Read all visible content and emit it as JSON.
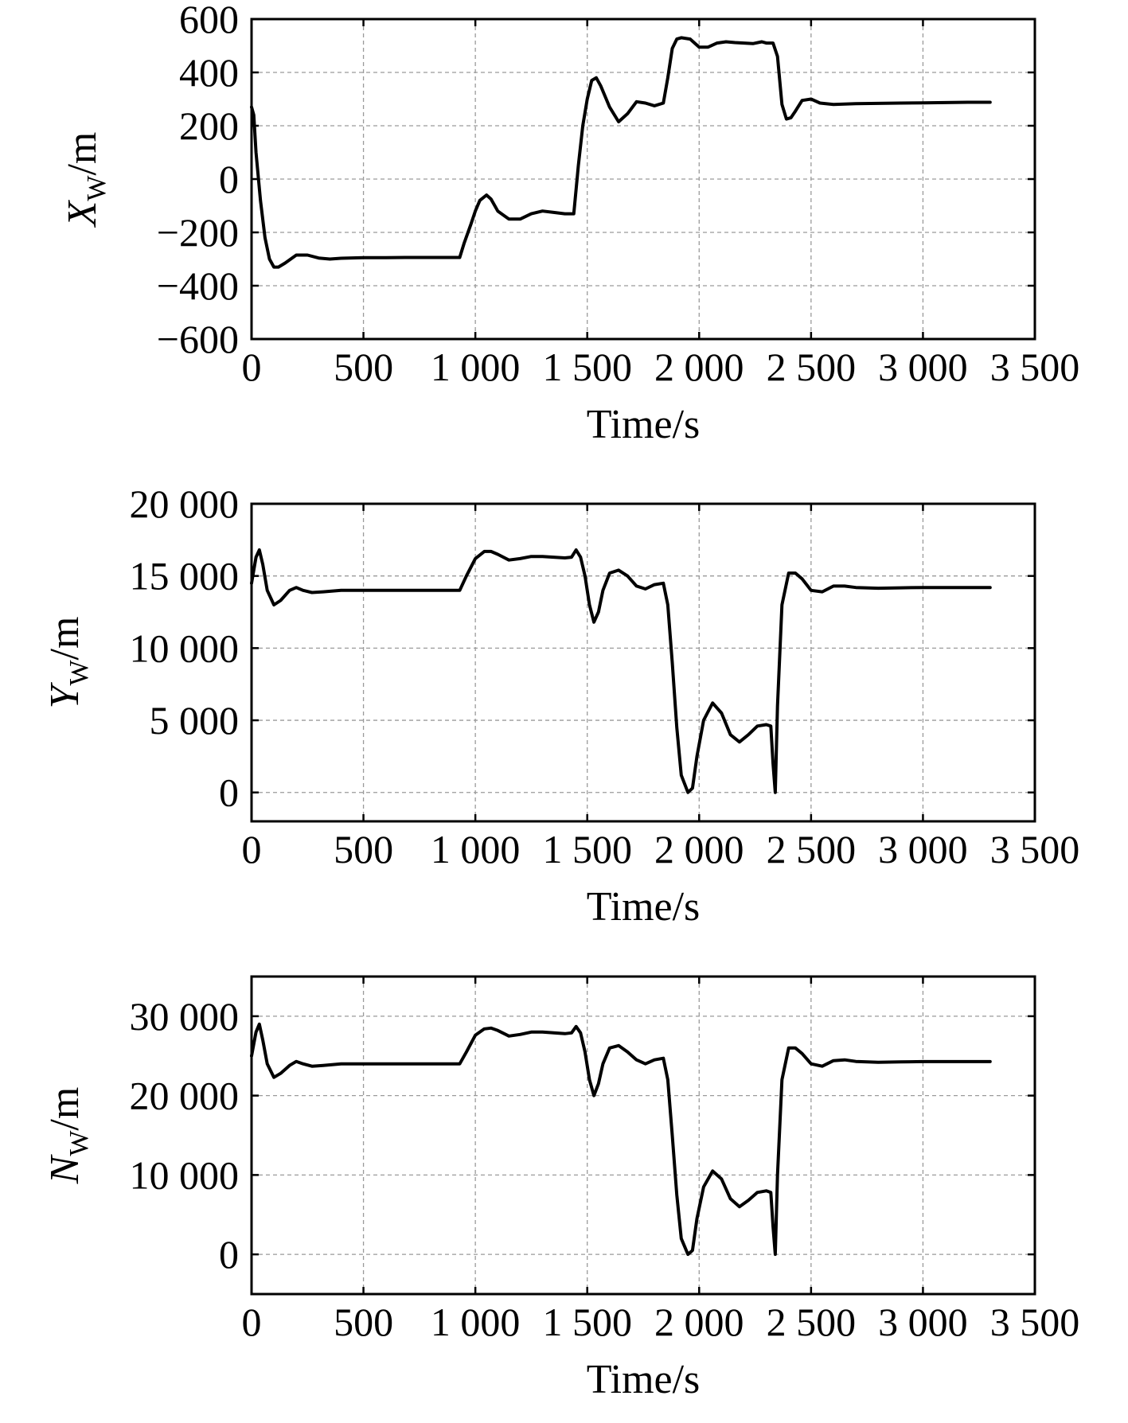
{
  "chart_data": [
    {
      "type": "line",
      "ylabel": {
        "main": "X",
        "sub": "W",
        "unit": "/m"
      },
      "xlabel": "Time/s",
      "xlim": [
        0,
        3500
      ],
      "ylim": [
        -600,
        600
      ],
      "xticks": [
        0,
        500,
        1000,
        1500,
        2000,
        2500,
        3000,
        3500
      ],
      "xtick_labels": [
        "0",
        "500",
        "1 000",
        "1 500",
        "2 000",
        "2 500",
        "3 000",
        "3 500"
      ],
      "yticks": [
        -600,
        -400,
        -200,
        0,
        200,
        400,
        600
      ],
      "ytick_labels": [
        "−600",
        "−400",
        "−200",
        "0",
        "200",
        "400",
        "600"
      ],
      "grid": true,
      "series": [
        {
          "x": [
            0,
            10,
            20,
            40,
            60,
            80,
            100,
            120,
            150,
            200,
            250,
            300,
            350,
            400,
            500,
            600,
            700,
            800,
            900,
            930,
            950,
            980,
            1000,
            1020,
            1050,
            1070,
            1100,
            1150,
            1200,
            1250,
            1300,
            1350,
            1400,
            1440,
            1460,
            1480,
            1500,
            1520,
            1540,
            1560,
            1600,
            1640,
            1680,
            1720,
            1760,
            1800,
            1840,
            1860,
            1880,
            1900,
            1920,
            1960,
            2000,
            2040,
            2080,
            2120,
            2160,
            2200,
            2240,
            2280,
            2300,
            2330,
            2350,
            2370,
            2390,
            2410,
            2430,
            2460,
            2500,
            2540,
            2600,
            2700,
            2800,
            2900,
            3000,
            3100,
            3200,
            3300
          ],
          "y": [
            270,
            240,
            100,
            -80,
            -220,
            -300,
            -330,
            -330,
            -315,
            -285,
            -285,
            -296,
            -300,
            -297,
            -295,
            -295,
            -294,
            -294,
            -294,
            -294,
            -240,
            -170,
            -120,
            -80,
            -60,
            -75,
            -120,
            -150,
            -150,
            -130,
            -120,
            -125,
            -130,
            -130,
            50,
            200,
            300,
            370,
            380,
            350,
            270,
            215,
            245,
            290,
            285,
            275,
            285,
            380,
            490,
            525,
            530,
            525,
            495,
            495,
            510,
            515,
            512,
            510,
            508,
            515,
            510,
            510,
            460,
            280,
            225,
            230,
            255,
            295,
            300,
            285,
            280,
            283,
            284,
            285,
            286,
            287,
            288,
            288
          ]
        }
      ]
    },
    {
      "type": "line",
      "ylabel": {
        "main": "Y",
        "sub": "W",
        "unit": "/m"
      },
      "xlabel": "Time/s",
      "xlim": [
        0,
        3500
      ],
      "ylim": [
        -2000,
        20000
      ],
      "xticks": [
        0,
        500,
        1000,
        1500,
        2000,
        2500,
        3000,
        3500
      ],
      "xtick_labels": [
        "0",
        "500",
        "1 000",
        "1 500",
        "2 000",
        "2 500",
        "3 000",
        "3 500"
      ],
      "yticks": [
        0,
        5000,
        10000,
        15000,
        20000
      ],
      "ytick_labels": [
        "0",
        "5 000",
        "10 000",
        "15 000",
        "20 000"
      ],
      "grid": true,
      "series": [
        {
          "x": [
            0,
            20,
            35,
            50,
            70,
            100,
            130,
            170,
            200,
            230,
            270,
            320,
            400,
            500,
            600,
            700,
            800,
            900,
            930,
            960,
            1000,
            1040,
            1070,
            1100,
            1150,
            1200,
            1250,
            1300,
            1350,
            1400,
            1430,
            1450,
            1470,
            1490,
            1510,
            1530,
            1550,
            1570,
            1600,
            1640,
            1680,
            1720,
            1760,
            1800,
            1840,
            1860,
            1880,
            1900,
            1920,
            1950,
            1970,
            1990,
            2020,
            2060,
            2100,
            2140,
            2180,
            2220,
            2260,
            2300,
            2320,
            2330,
            2340,
            2350,
            2370,
            2400,
            2430,
            2460,
            2500,
            2550,
            2600,
            2650,
            2700,
            2800,
            2900,
            3000,
            3100,
            3200,
            3300
          ],
          "y": [
            14500,
            16300,
            16800,
            15800,
            14000,
            13000,
            13300,
            14000,
            14200,
            14000,
            13850,
            13900,
            14000,
            14000,
            14000,
            14000,
            14000,
            14000,
            14000,
            15000,
            16200,
            16700,
            16700,
            16500,
            16100,
            16200,
            16350,
            16350,
            16300,
            16250,
            16300,
            16800,
            16300,
            15000,
            13000,
            11800,
            12500,
            14000,
            15200,
            15400,
            15000,
            14300,
            14100,
            14400,
            14500,
            13000,
            9000,
            4500,
            1200,
            0,
            300,
            2500,
            5000,
            6200,
            5500,
            4000,
            3500,
            4000,
            4600,
            4700,
            4600,
            2000,
            0,
            6000,
            13000,
            15200,
            15200,
            14800,
            14000,
            13900,
            14300,
            14300,
            14200,
            14150,
            14180,
            14200,
            14200,
            14200,
            14200
          ]
        }
      ]
    },
    {
      "type": "line",
      "ylabel": {
        "main": "N",
        "sub": "W",
        "unit": "/m"
      },
      "xlabel": "Time/s",
      "xlim": [
        0,
        3500
      ],
      "ylim": [
        -5000,
        35000
      ],
      "xticks": [
        0,
        500,
        1000,
        1500,
        2000,
        2500,
        3000,
        3500
      ],
      "xtick_labels": [
        "0",
        "500",
        "1 000",
        "1 500",
        "2 000",
        "2 500",
        "3 000",
        "3 500"
      ],
      "yticks": [
        0,
        10000,
        20000,
        30000
      ],
      "ytick_labels": [
        "0",
        "10 000",
        "20 000",
        "30 000"
      ],
      "grid": true,
      "series": [
        {
          "x": [
            0,
            20,
            35,
            50,
            70,
            100,
            130,
            170,
            200,
            230,
            270,
            320,
            400,
            500,
            600,
            700,
            800,
            900,
            930,
            960,
            1000,
            1040,
            1070,
            1100,
            1150,
            1200,
            1250,
            1300,
            1350,
            1400,
            1430,
            1450,
            1470,
            1490,
            1510,
            1530,
            1550,
            1570,
            1600,
            1640,
            1680,
            1720,
            1760,
            1800,
            1840,
            1860,
            1880,
            1900,
            1920,
            1950,
            1970,
            1990,
            2020,
            2060,
            2100,
            2140,
            2180,
            2220,
            2260,
            2300,
            2320,
            2330,
            2340,
            2350,
            2370,
            2400,
            2430,
            2460,
            2500,
            2550,
            2600,
            2650,
            2700,
            2800,
            2900,
            3000,
            3100,
            3200,
            3300
          ],
          "y": [
            25000,
            28000,
            29000,
            27000,
            24000,
            22300,
            22800,
            23800,
            24300,
            24000,
            23700,
            23800,
            24000,
            24000,
            24000,
            24000,
            24000,
            24000,
            24000,
            25500,
            27600,
            28400,
            28500,
            28200,
            27500,
            27700,
            28000,
            28000,
            27900,
            27800,
            27900,
            28700,
            27900,
            25500,
            22000,
            20000,
            21500,
            24000,
            26000,
            26300,
            25500,
            24500,
            24000,
            24500,
            24700,
            22000,
            15000,
            7500,
            2000,
            0,
            500,
            4500,
            8500,
            10500,
            9500,
            7000,
            6000,
            6800,
            7800,
            8000,
            7800,
            3500,
            0,
            10000,
            22000,
            26000,
            26000,
            25300,
            24000,
            23700,
            24400,
            24500,
            24300,
            24200,
            24250,
            24280,
            24280,
            24280,
            24280
          ]
        }
      ]
    }
  ]
}
